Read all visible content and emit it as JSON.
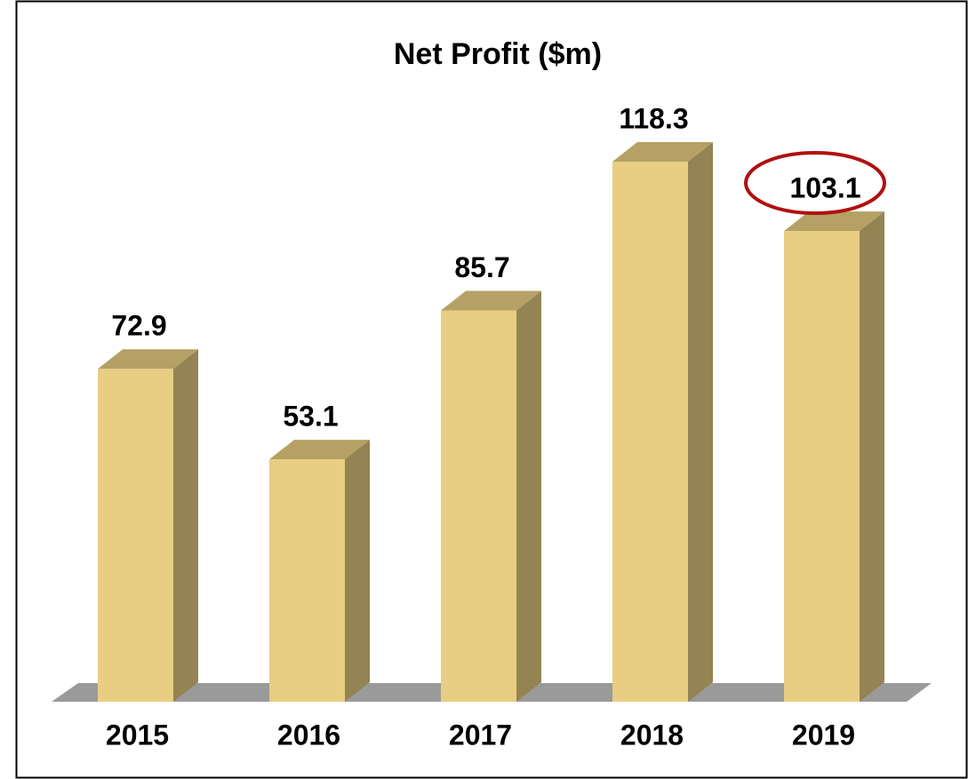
{
  "chart_data": {
    "type": "bar",
    "title": "Net Profit ($m)",
    "categories": [
      "2015",
      "2016",
      "2017",
      "2018",
      "2019"
    ],
    "values": [
      72.9,
      53.1,
      85.7,
      118.3,
      103.1
    ],
    "color": "#e8ce82"
  }
}
